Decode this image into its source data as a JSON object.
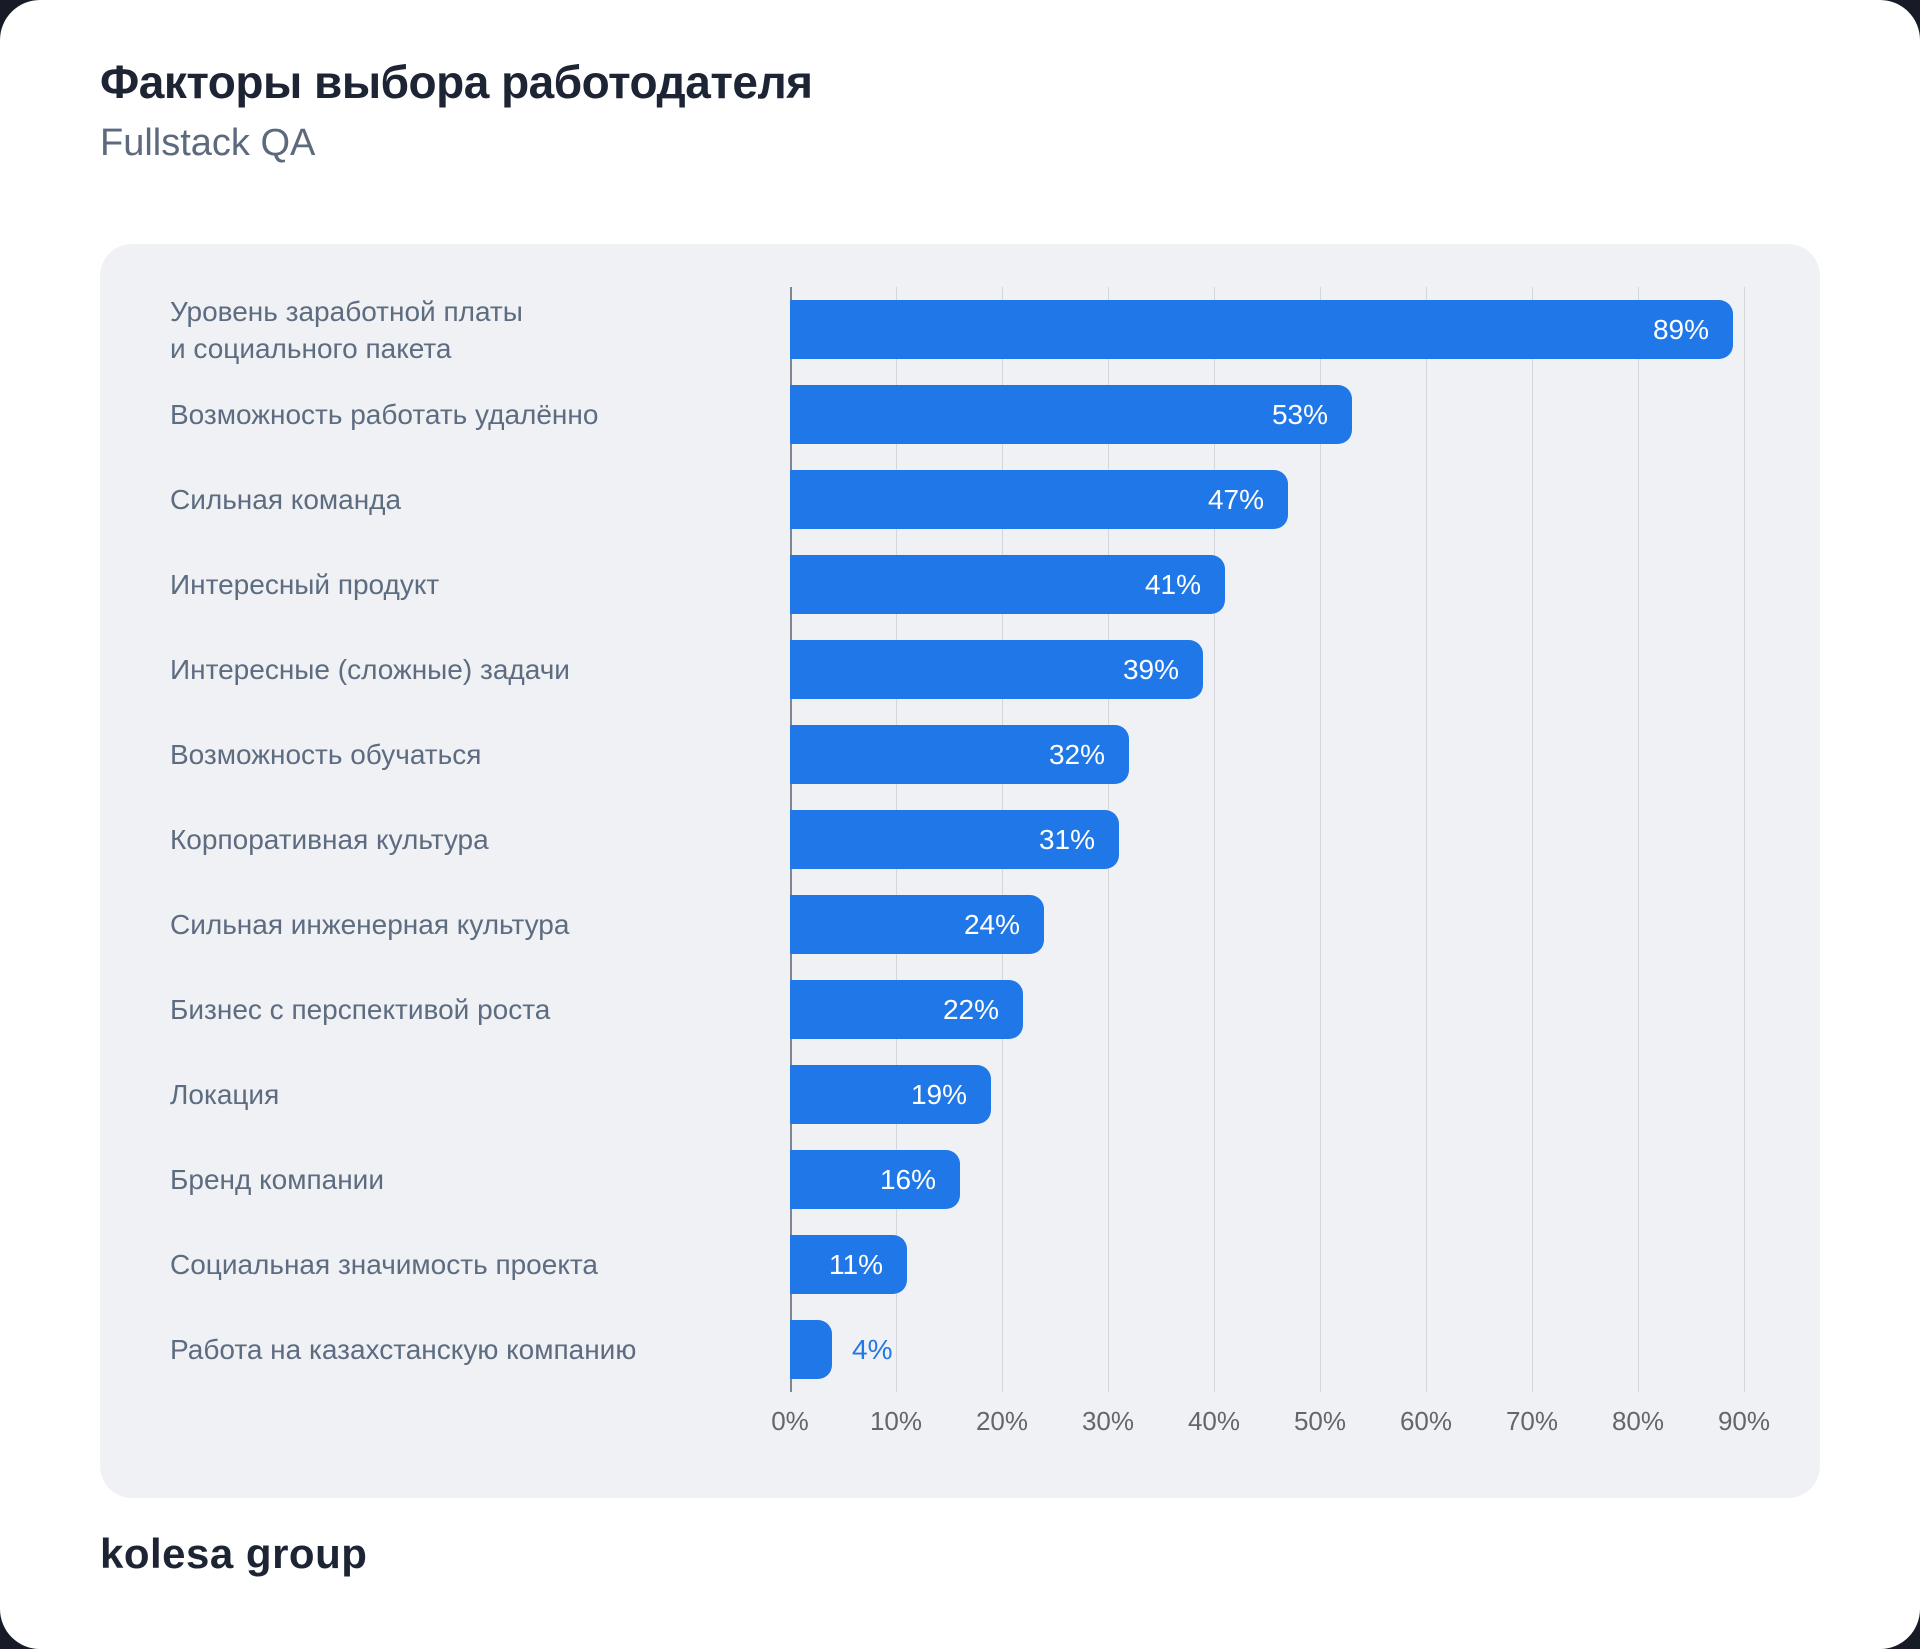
{
  "header": {
    "title": "Факторы выбора работодателя",
    "subtitle": "Fullstack QA"
  },
  "footer": {
    "logo_text": "kolesa group"
  },
  "colors": {
    "bar": "#2077e8",
    "card_background": "#eff1f4",
    "frame_background": "#ffffff",
    "title_text": "#1d2433",
    "subtitle_text": "#5d6a7e",
    "category_label_text": "#5d6c80",
    "tick_text": "#62666d",
    "gridline": "#d3d6db",
    "axis_line": "#7e8694",
    "value_label_inside": "#ffffff"
  },
  "chart_data": {
    "type": "bar",
    "orientation": "horizontal",
    "title": "Факторы выбора работодателя",
    "subtitle": "Fullstack QA",
    "categories": [
      "Уровень заработной платы\nи социального пакета",
      "Возможность работать удалённо",
      "Сильная команда",
      "Интересный продукт",
      "Интересные (сложные) задачи",
      "Возможность обучаться",
      "Корпоративная культура",
      "Сильная инженерная культура",
      "Бизнес с перспективой роста",
      "Локация",
      "Бренд компании",
      "Социальная значимость проекта",
      "Работа на казахстанскую компанию"
    ],
    "values": [
      89,
      53,
      47,
      41,
      39,
      32,
      31,
      24,
      22,
      19,
      16,
      11,
      4
    ],
    "value_labels": [
      "89%",
      "53%",
      "47%",
      "41%",
      "39%",
      "32%",
      "31%",
      "24%",
      "22%",
      "19%",
      "16%",
      "11%",
      "4%"
    ],
    "value_label_placement": [
      "inside",
      "inside",
      "inside",
      "inside",
      "inside",
      "inside",
      "inside",
      "inside",
      "inside",
      "inside",
      "inside",
      "inside",
      "outside"
    ],
    "x_tick_labels": [
      "0%",
      "10%",
      "20%",
      "30%",
      "40%",
      "50%",
      "60%",
      "70%",
      "80%",
      "90%"
    ],
    "x_tick_values": [
      0,
      10,
      20,
      30,
      40,
      50,
      60,
      70,
      80,
      90
    ],
    "xlim": [
      0,
      90
    ],
    "grid": true,
    "legend": false
  }
}
